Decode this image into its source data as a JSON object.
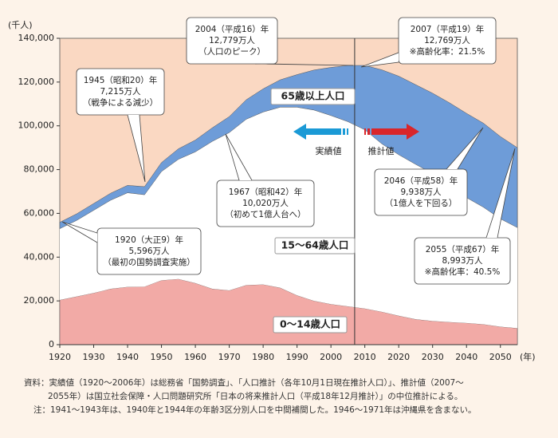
{
  "chart_data": {
    "type": "area",
    "stacked": true,
    "y_unit": "(千人)",
    "x_unit": "(年)",
    "x": [
      1920,
      1925,
      1930,
      1935,
      1940,
      1945,
      1950,
      1955,
      1960,
      1965,
      1970,
      1975,
      1980,
      1985,
      1990,
      1995,
      2000,
      2005,
      2010,
      2015,
      2020,
      2025,
      2030,
      2035,
      2040,
      2045,
      2050,
      2055
    ],
    "series": [
      {
        "name": "0～14歳人口",
        "color": "#f2aaa6",
        "values": [
          20400,
          22000,
          23600,
          25500,
          26400,
          26500,
          29400,
          30000,
          28100,
          25500,
          24800,
          27200,
          27500,
          26000,
          22500,
          20000,
          18500,
          17500,
          16500,
          15000,
          13200,
          11600,
          10800,
          10300,
          9900,
          9300,
          8200,
          7500
        ]
      },
      {
        "name": "15～64歳人口",
        "color": "#ffffff",
        "values": [
          32600,
          34800,
          37800,
          40500,
          43000,
          42000,
          49700,
          54700,
          60000,
          67400,
          72100,
          75800,
          78800,
          82500,
          86000,
          87200,
          86200,
          84400,
          81700,
          76800,
          73600,
          70800,
          67400,
          62900,
          57300,
          53500,
          49300,
          46000
        ]
      },
      {
        "name": "65歳以上人口",
        "color": "#6e9cd8",
        "values": [
          2900,
          3000,
          3100,
          3200,
          3400,
          3700,
          4100,
          4800,
          5400,
          6200,
          7300,
          8900,
          10600,
          12500,
          14900,
          18300,
          22000,
          25700,
          29400,
          33800,
          35900,
          36400,
          36700,
          37300,
          38500,
          38400,
          37600,
          36500
        ]
      }
    ],
    "xlim": [
      1920,
      2055
    ],
    "xticks": [
      1920,
      1930,
      1940,
      1950,
      1960,
      1970,
      1980,
      1990,
      2000,
      2010,
      2020,
      2030,
      2040,
      2050
    ],
    "ylim": [
      0,
      140000
    ],
    "yticks": [
      0,
      {
        "value": 20000,
        "label": "20,000"
      },
      {
        "value": 40000,
        "label": "40,000"
      },
      {
        "value": 60000,
        "label": "60,000"
      },
      {
        "value": 80000,
        "label": "80,000"
      },
      {
        "value": 100000,
        "label": "100,000"
      },
      {
        "value": 120000,
        "label": "120,000"
      },
      {
        "value": 140000,
        "label": "140,000"
      }
    ],
    "grid": false,
    "plot_color": "#fad8c2",
    "divider": 2007,
    "divider_labels": [
      "実績値",
      "推計値"
    ],
    "annotations": [
      {
        "lines": [
          "1945（昭和20）年",
          "7,215万人",
          "（戦争による減少）"
        ]
      },
      {
        "lines": [
          "2004（平成16）年",
          "12,779万人",
          "（人口のピーク）"
        ]
      },
      {
        "lines": [
          "2007（平成19）年",
          "12,769万人",
          "※高齢化率：21.5%"
        ]
      },
      {
        "lines": [
          "1967（昭和42）年",
          "10,020万人",
          "（初めて1億人台へ）"
        ]
      },
      {
        "lines": [
          "1920（大正9）年",
          "5,596万人",
          "（最初の国勢調査実施）"
        ]
      },
      {
        "lines": [
          "2046（平成58）年",
          "9,938万人",
          "（1億人を下回る）"
        ]
      },
      {
        "lines": [
          "2055（平成67）年",
          "8,993万人",
          "※高齢化率：40.5%"
        ]
      }
    ],
    "notes": [
      "資料：実績値（1920～2006年）は総務省「国勢調査」、「人口推計（各年10月1日現在推計人口）」、推計値（2007～",
      "2055年）は国立社会保障・人口問題研究所「日本の将来推計人口（平成18年12月推計）」の中位推計による。",
      "注：1941～1943年は、1940年と1944年の年齢3区分別人口を中間補間した。1946～1971年は沖縄県を含まない。"
    ]
  }
}
